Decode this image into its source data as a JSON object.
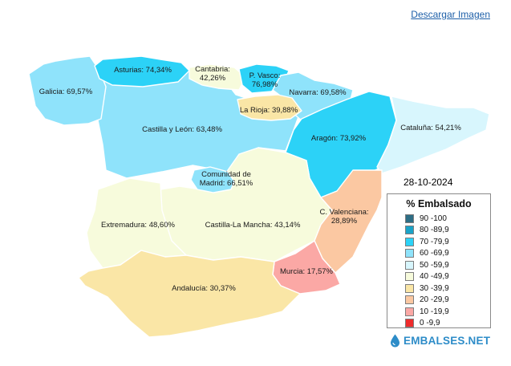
{
  "download_link": "Descargar Imagen",
  "date": "28-10-2024",
  "legend": {
    "title": "% Embalsado",
    "items": [
      {
        "range": "90 -100",
        "color": "#2e6e85"
      },
      {
        "range": "80 -89,9",
        "color": "#1aa3c8"
      },
      {
        "range": "70 -79,9",
        "color": "#2cd2f7"
      },
      {
        "range": "60 -69,9",
        "color": "#8fe3fb"
      },
      {
        "range": "50 -59,9",
        "color": "#d8f6fd"
      },
      {
        "range": "40 -49,9",
        "color": "#f7fbdc"
      },
      {
        "range": "30 -39,9",
        "color": "#fae6a6"
      },
      {
        "range": "20 -29,9",
        "color": "#fbc8a2"
      },
      {
        "range": "10 -19,9",
        "color": "#fba8a5"
      },
      {
        "range": "0 -9,9",
        "color": "#ee2c2c"
      }
    ]
  },
  "brand": "EMBALSES.NET",
  "brand_icon": "water-drop-icon",
  "regions": [
    {
      "id": "galicia",
      "name": "Galicia",
      "value": "69,57%",
      "color": "#8fe3fb"
    },
    {
      "id": "asturias",
      "name": "Asturias",
      "value": "74,34%",
      "color": "#2cd2f7"
    },
    {
      "id": "cantabria",
      "name": "Cantabria",
      "value": "42,26%",
      "color": "#f7fbdc"
    },
    {
      "id": "pvasco",
      "name": "P. Vasco",
      "value": "76,98%",
      "color": "#2cd2f7"
    },
    {
      "id": "navarra",
      "name": "Navarra",
      "value": "69,58%",
      "color": "#8fe3fb"
    },
    {
      "id": "larioja",
      "name": "La Rioja",
      "value": "39,88%",
      "color": "#fae6a6"
    },
    {
      "id": "castillaleon",
      "name": "Castilla y León",
      "value": "63,48%",
      "color": "#8fe3fb"
    },
    {
      "id": "aragon",
      "name": "Aragón",
      "value": "73,92%",
      "color": "#2cd2f7"
    },
    {
      "id": "cataluna",
      "name": "Cataluña",
      "value": "54,21%",
      "color": "#d8f6fd"
    },
    {
      "id": "madrid",
      "name": "Comunidad de Madrid",
      "value": "66,51%",
      "color": "#8fe3fb"
    },
    {
      "id": "extremadura",
      "name": "Extremadura",
      "value": "48,60%",
      "color": "#f7fbdc"
    },
    {
      "id": "castillamancha",
      "name": "Castilla-La Mancha",
      "value": "43,14%",
      "color": "#f7fbdc"
    },
    {
      "id": "valenciana",
      "name": "C. Valenciana",
      "value": "28,89%",
      "color": "#fbc8a2"
    },
    {
      "id": "murcia",
      "name": "Murcia",
      "value": "17,57%",
      "color": "#fba8a5"
    },
    {
      "id": "andalucia",
      "name": "Andalucía",
      "value": "30,37%",
      "color": "#fae6a6"
    }
  ]
}
